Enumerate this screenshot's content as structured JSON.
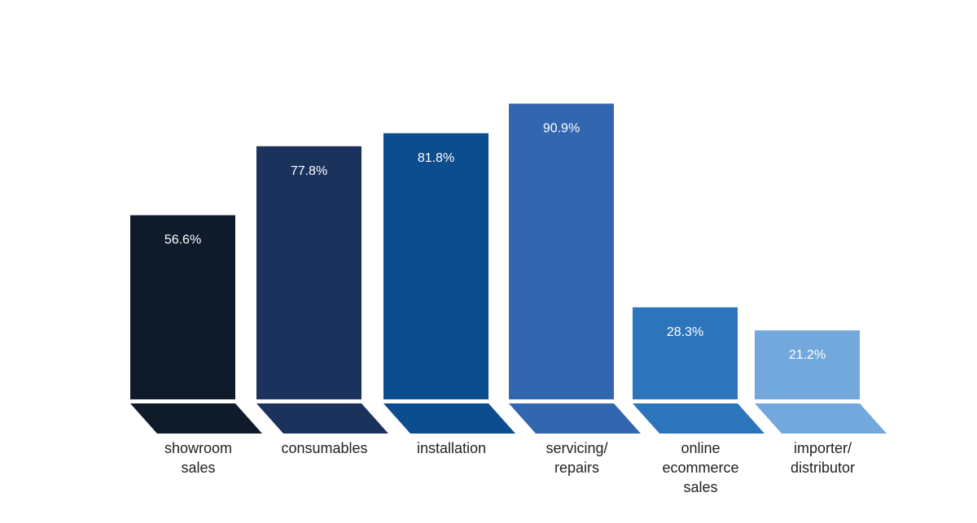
{
  "chart_data": {
    "type": "bar",
    "title": "",
    "xlabel": "",
    "ylabel": "",
    "ylim": [
      0,
      100
    ],
    "grid": false,
    "legend": "none",
    "categories": [
      [
        "showroom",
        "sales"
      ],
      [
        "consumables"
      ],
      [
        "installation"
      ],
      [
        "servicing/",
        "repairs"
      ],
      [
        "online",
        "ecommerce",
        "sales"
      ],
      [
        "importer/",
        "distributor"
      ]
    ],
    "values": [
      56.6,
      77.8,
      81.8,
      90.9,
      28.3,
      21.2
    ],
    "value_labels": [
      "56.6%",
      "77.8%",
      "81.8%",
      "90.9%",
      "28.3%",
      "21.2%"
    ],
    "colors": [
      "#0f1a2b",
      "#1b325c",
      "#0b4d8e",
      "#3366b1",
      "#2c75bb",
      "#72a8db"
    ]
  }
}
